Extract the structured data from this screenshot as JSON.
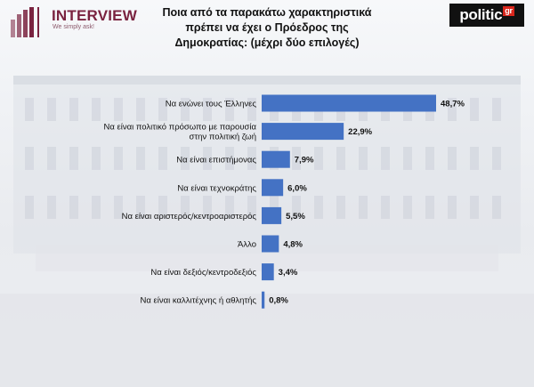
{
  "header": {
    "interview_logo": "INTERVIEW",
    "interview_tagline": "We simply ask!",
    "politic_logo": "politic",
    "politic_logo_suffix": "gr",
    "title": "Ποια από τα παρακάτω χαρακτηριστικά πρέπει να έχει ο Πρόεδρος της Δημοκρατίας: (μέχρι δύο επιλογές)"
  },
  "colors": {
    "bar": "#4472c4",
    "brand_interview": "#7a2340",
    "brand_politic_red": "#d9261c"
  },
  "chart_data": {
    "type": "bar",
    "orientation": "horizontal",
    "title": "Ποια από τα παρακάτω χαρακτηριστικά πρέπει να έχει ο Πρόεδρος της Δημοκρατίας: (μέχρι δύο επιλογές)",
    "categories": [
      [
        "Να ενώνει τους Έλληνες"
      ],
      [
        "Να είναι πολιτικό πρόσωπο με παρουσία",
        "στην πολιτική ζωή"
      ],
      [
        "Να είναι επιστήμονας"
      ],
      [
        "Να είναι τεχνοκράτης"
      ],
      [
        "Να είναι αριστερός/κεντροαριστερός"
      ],
      [
        "Άλλο"
      ],
      [
        "Να είναι δεξιός/κεντροδεξιός"
      ],
      [
        "Να είναι καλλιτέχνης ή αθλητής"
      ]
    ],
    "values": [
      48.7,
      22.9,
      7.9,
      6.0,
      5.5,
      4.8,
      3.4,
      0.8
    ],
    "value_labels": [
      "48,7%",
      "22,9%",
      "7,9%",
      "6,0%",
      "5,5%",
      "4,8%",
      "3,4%",
      "0,8%"
    ],
    "unit": "%",
    "xlim": [
      0,
      50
    ],
    "grid": false,
    "legend": "none"
  }
}
